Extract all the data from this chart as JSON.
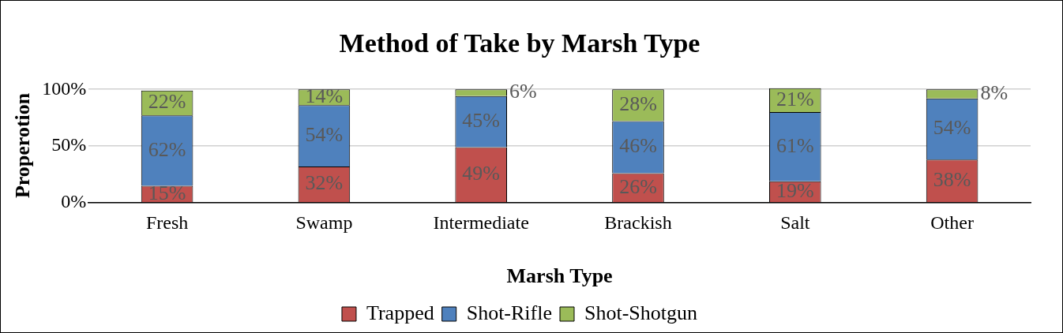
{
  "chart_data": {
    "type": "bar",
    "title": "Method of Take by Marsh Type",
    "xlabel": "Marsh Type",
    "ylabel": "Properotion",
    "categories": [
      "Fresh",
      "Swamp",
      "Intermediate",
      "Brackish",
      "Salt",
      "Other"
    ],
    "stacked": true,
    "ylim": [
      0,
      101
    ],
    "yticks": [
      {
        "value": 0,
        "label": "0%"
      },
      {
        "value": 50,
        "label": "50%"
      },
      {
        "value": 100,
        "label": "100%"
      }
    ],
    "grid": "y",
    "legend": "bottom",
    "series": [
      {
        "name": "Trapped",
        "color": "#c0504d",
        "values": [
          15,
          32,
          49,
          26,
          19,
          38
        ],
        "value_labels": [
          "15%",
          "32%",
          "49%",
          "26%",
          "19%",
          "38%"
        ]
      },
      {
        "name": "Shot-Rifle",
        "color": "#4f81bd",
        "values": [
          62,
          54,
          45,
          46,
          61,
          54
        ],
        "value_labels": [
          "62%",
          "54%",
          "45%",
          "46%",
          "61%",
          "54%"
        ]
      },
      {
        "name": "Shot-Shotgun",
        "color": "#9bbb59",
        "values": [
          22,
          14,
          6,
          28,
          21,
          8
        ],
        "value_labels": [
          "22%",
          "14%",
          "6%",
          "28%",
          "21%",
          "8%"
        ]
      }
    ]
  }
}
